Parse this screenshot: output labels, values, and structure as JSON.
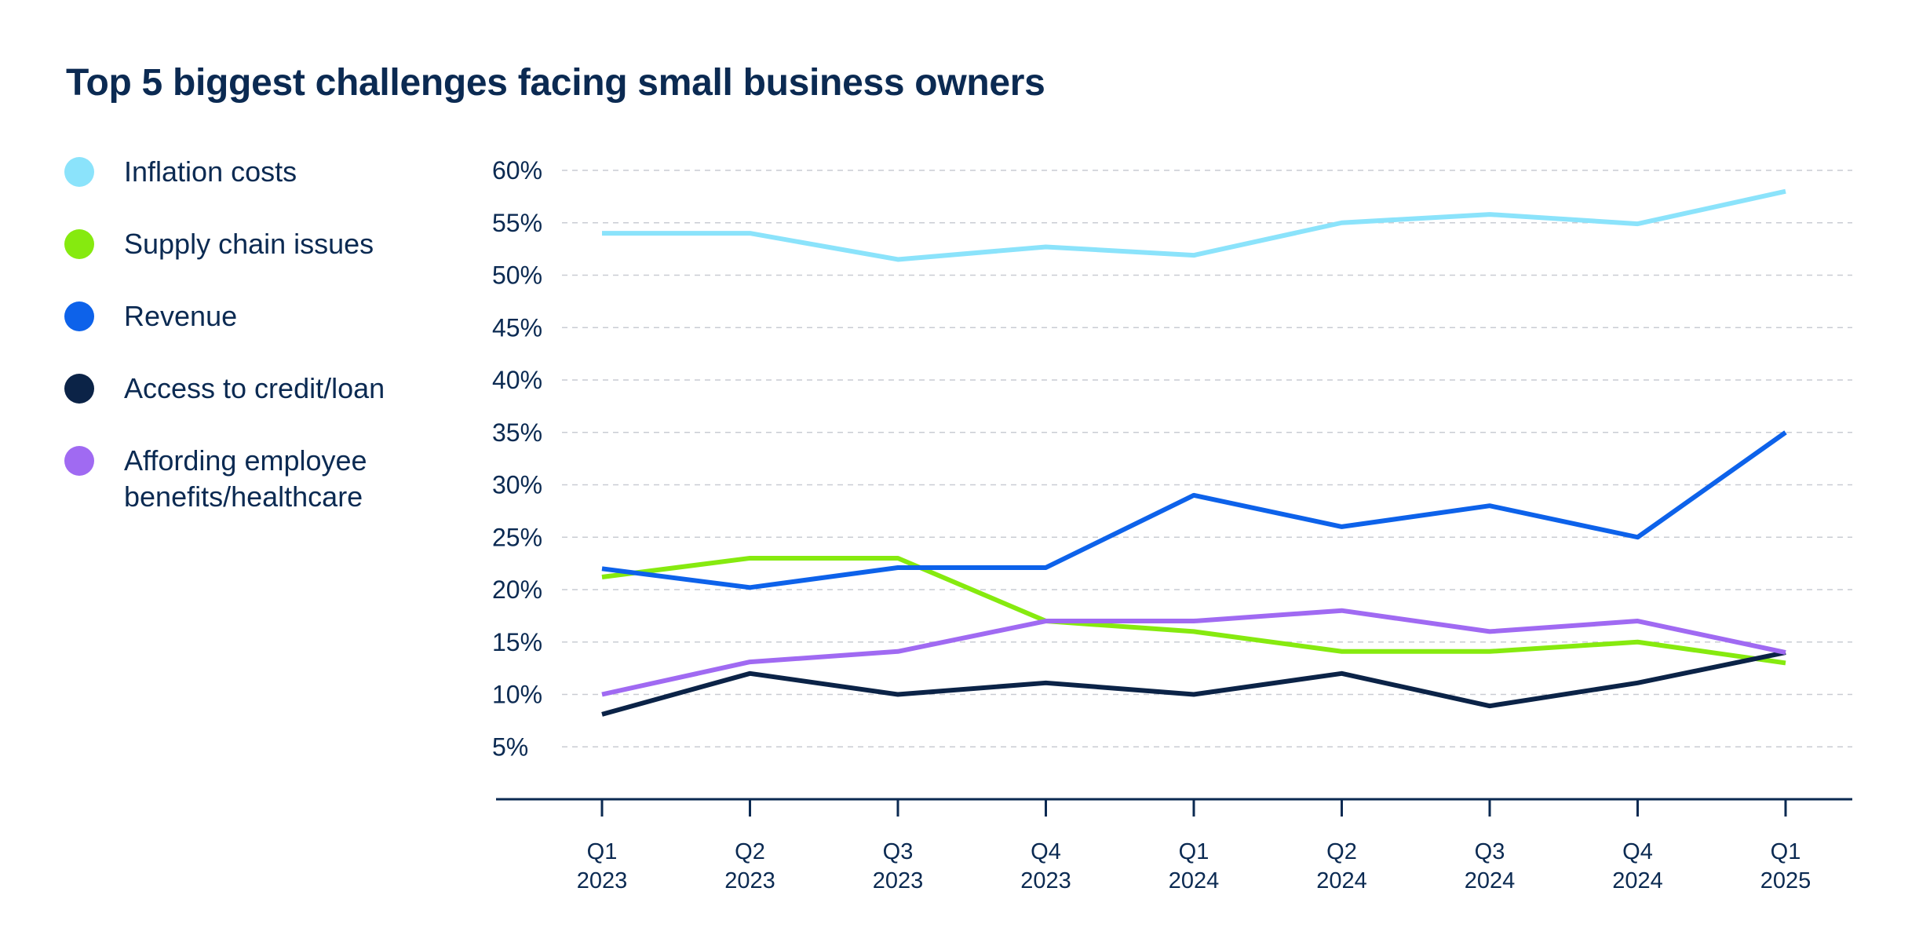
{
  "chart_data": {
    "type": "line",
    "title": "Top 5 biggest challenges facing small business owners",
    "xlabel": "",
    "ylabel": "",
    "categories": [
      [
        "Q1",
        "2023"
      ],
      [
        "Q2",
        "2023"
      ],
      [
        "Q3",
        "2023"
      ],
      [
        "Q4",
        "2023"
      ],
      [
        "Q1",
        "2024"
      ],
      [
        "Q2",
        "2024"
      ],
      [
        "Q3",
        "2024"
      ],
      [
        "Q4",
        "2024"
      ],
      [
        "Q1",
        "2025"
      ]
    ],
    "yticks": [
      5,
      10,
      15,
      20,
      25,
      30,
      35,
      40,
      45,
      50,
      55,
      60
    ],
    "ytick_labels": [
      "5%",
      "10%",
      "15%",
      "20%",
      "25%",
      "30%",
      "35%",
      "40%",
      "45%",
      "50%",
      "55%",
      "60%"
    ],
    "ylim": [
      0,
      60
    ],
    "grid": true,
    "legend_position": "left",
    "series": [
      {
        "name": "Inflation costs",
        "color": "#8be3fb",
        "values": [
          54,
          54,
          51.5,
          52.7,
          51.9,
          55,
          55.8,
          54.9,
          58
        ]
      },
      {
        "name": "Supply chain issues",
        "color": "#86ea0f",
        "values": [
          21.2,
          23,
          23,
          17,
          16,
          14.1,
          14.1,
          15,
          13
        ]
      },
      {
        "name": "Revenue",
        "color": "#0d62ea",
        "values": [
          22,
          20.2,
          22.1,
          22.1,
          29,
          26,
          28,
          25,
          35
        ]
      },
      {
        "name": "Access to credit/loan",
        "color": "#0b2347",
        "values": [
          8.1,
          12,
          10,
          11.1,
          10,
          12,
          8.9,
          11.1,
          14
        ]
      },
      {
        "name": "Affording employee benefits/healthcare",
        "color": "#a06af2",
        "values": [
          10,
          13.1,
          14.1,
          17,
          17,
          18,
          16,
          17,
          14
        ]
      }
    ]
  }
}
